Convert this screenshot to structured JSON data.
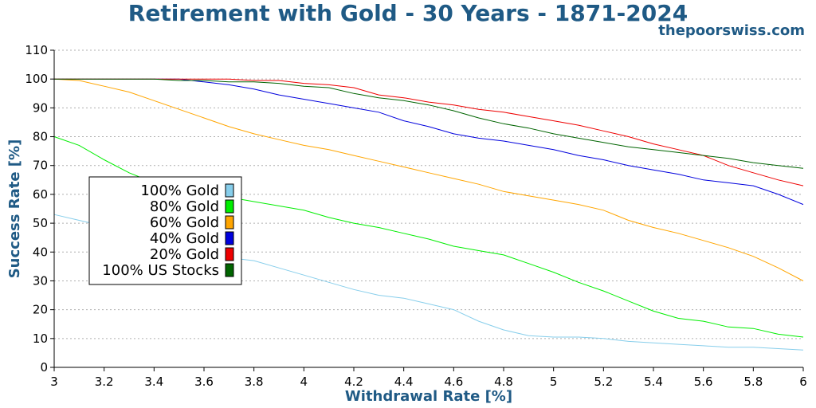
{
  "header": {
    "title": "Retirement with Gold - 30 Years - 1871-2024",
    "watermark": "thepoorswiss.com"
  },
  "chart_data": {
    "type": "line",
    "title": "Retirement with Gold - 30 Years - 1871-2024",
    "xlabel": "Withdrawal Rate [%]",
    "ylabel": "Success Rate [%]",
    "xlim": [
      3,
      6
    ],
    "ylim": [
      0,
      110
    ],
    "xticks": [
      "3",
      "3.2",
      "3.4",
      "3.6",
      "3.8",
      "4",
      "4.2",
      "4.4",
      "4.6",
      "4.8",
      "5",
      "5.2",
      "5.4",
      "5.6",
      "5.8",
      "6"
    ],
    "yticks": [
      "0",
      "10",
      "20",
      "30",
      "40",
      "50",
      "60",
      "70",
      "80",
      "90",
      "100",
      "110"
    ],
    "grid": "horizontal dotted",
    "legend_position": "center-left",
    "x": [
      3.0,
      3.1,
      3.2,
      3.3,
      3.4,
      3.5,
      3.6,
      3.7,
      3.8,
      3.9,
      4.0,
      4.1,
      4.2,
      4.3,
      4.4,
      4.5,
      4.6,
      4.7,
      4.8,
      4.9,
      5.0,
      5.1,
      5.2,
      5.3,
      5.4,
      5.5,
      5.6,
      5.7,
      5.8,
      5.9,
      6.0
    ],
    "series": [
      {
        "name": "100% Gold",
        "color": "#87ceeb",
        "values": [
          53,
          51,
          49,
          46,
          44,
          42,
          40,
          38,
          37,
          34.5,
          32,
          29.5,
          27,
          25,
          24,
          22,
          20,
          16,
          13,
          11,
          10.5,
          10.5,
          10,
          9,
          8.5,
          8,
          7.5,
          7,
          7,
          6.5,
          6
        ]
      },
      {
        "name": "80% Gold",
        "color": "#00ee00",
        "values": [
          80,
          77,
          72,
          67.5,
          64,
          62,
          60.5,
          59,
          57.5,
          56,
          54.5,
          52,
          50,
          48.5,
          46.5,
          44.5,
          42,
          40.5,
          39,
          36,
          33,
          29.5,
          26.5,
          23,
          19.5,
          17,
          16,
          14,
          13.5,
          11.5,
          10.5
        ]
      },
      {
        "name": "60% Gold",
        "color": "#ffa500",
        "values": [
          100,
          99.5,
          97.5,
          95.5,
          92.5,
          89.5,
          86.5,
          83.5,
          81,
          79,
          77,
          75.5,
          73.5,
          71.5,
          69.5,
          67.5,
          65.5,
          63.5,
          61,
          59.5,
          58,
          56.5,
          54.5,
          51,
          48.5,
          46.5,
          44,
          41.5,
          38.5,
          34.5,
          30
        ]
      },
      {
        "name": "40% Gold",
        "color": "#0000dd",
        "values": [
          100,
          100,
          100,
          100,
          100,
          100,
          99,
          98,
          96.5,
          94.5,
          93,
          91.5,
          90,
          88.5,
          85.5,
          83.5,
          81,
          79.5,
          78.5,
          77,
          75.5,
          73.5,
          72,
          70,
          68.5,
          67,
          65,
          64,
          63,
          60,
          56.5
        ]
      },
      {
        "name": "20% Gold",
        "color": "#ee0000",
        "values": [
          100,
          100,
          100,
          100,
          100,
          100,
          100,
          100,
          99.5,
          99.5,
          98.5,
          98,
          97,
          94.5,
          93.5,
          92,
          91,
          89.5,
          88.5,
          87,
          85.5,
          84,
          82,
          80,
          77.5,
          75.5,
          73.5,
          70,
          67.5,
          65,
          63
        ]
      },
      {
        "name": "100% US Stocks",
        "color": "#006400",
        "values": [
          100,
          100,
          100,
          100,
          100,
          99.5,
          99.5,
          99,
          99,
          98.5,
          97.5,
          97,
          95,
          93.5,
          92.5,
          91,
          89,
          86.5,
          84.5,
          83,
          81,
          79.5,
          78,
          76.5,
          75.5,
          74.5,
          73.5,
          72.5,
          71,
          70,
          69
        ]
      }
    ]
  }
}
